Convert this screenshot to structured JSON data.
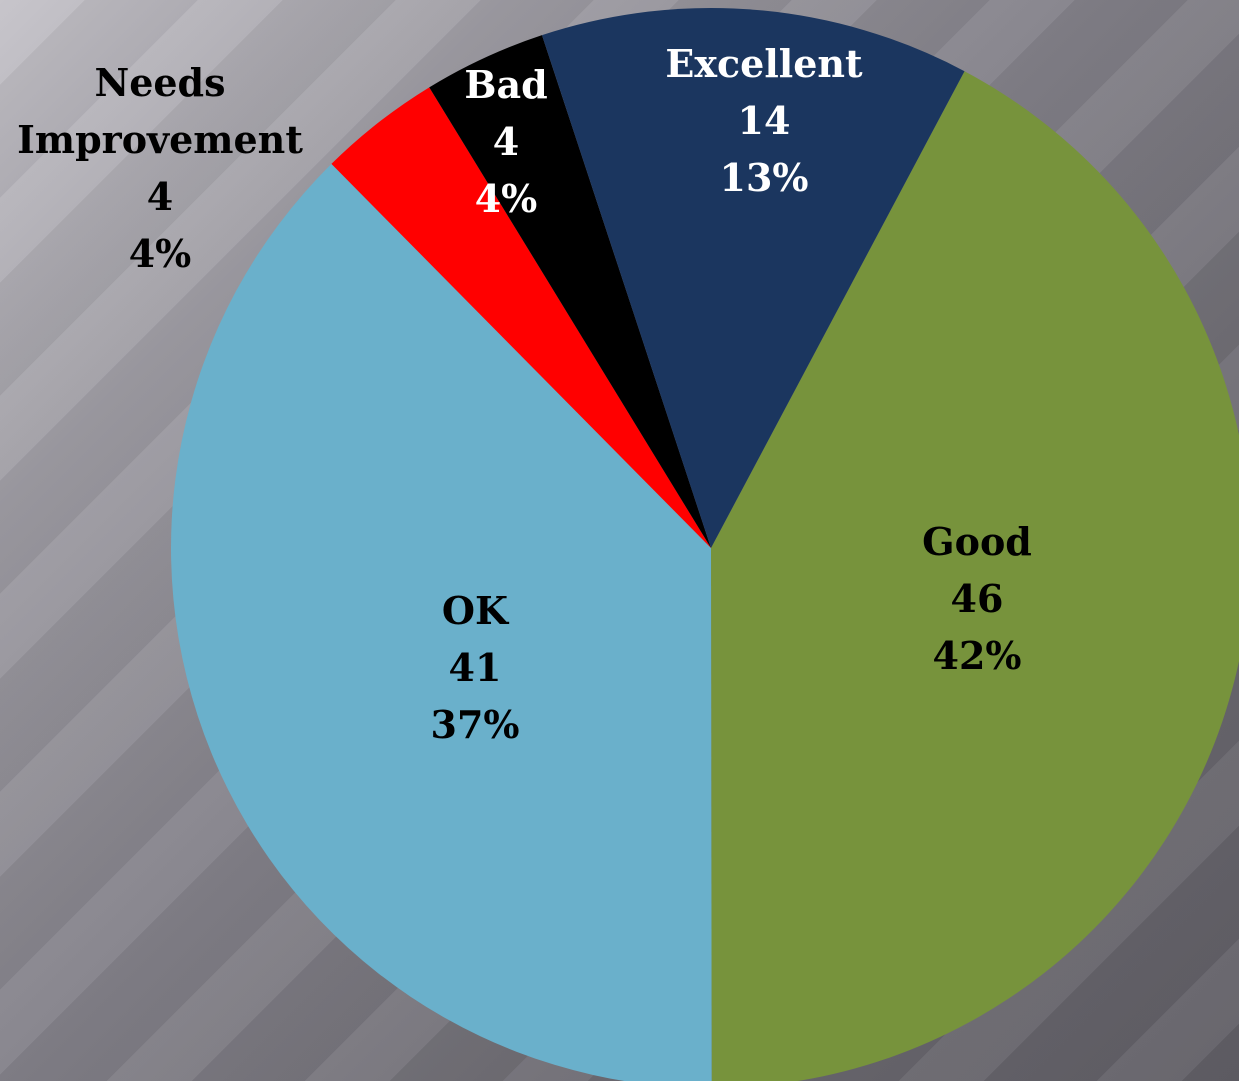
{
  "chart_data": {
    "type": "pie",
    "title": "",
    "slices": [
      {
        "label": "Good",
        "value": 46,
        "percent": "42%",
        "color": "#77933c",
        "text_color": "#000000"
      },
      {
        "label": "OK",
        "value": 41,
        "percent": "37%",
        "color": "#6ab0cb",
        "text_color": "#000000"
      },
      {
        "label": "Needs Improvement",
        "label_lines": [
          "Needs",
          "Improvement"
        ],
        "value": 4,
        "percent": "4%",
        "color": "#ff0000",
        "text_color": "#000000"
      },
      {
        "label": "Bad",
        "value": 4,
        "percent": "4%",
        "color": "#000000",
        "text_color": "#ffffff"
      },
      {
        "label": "Excellent",
        "value": 14,
        "percent": "13%",
        "color": "#1b365f",
        "text_color": "#ffffff"
      }
    ]
  }
}
